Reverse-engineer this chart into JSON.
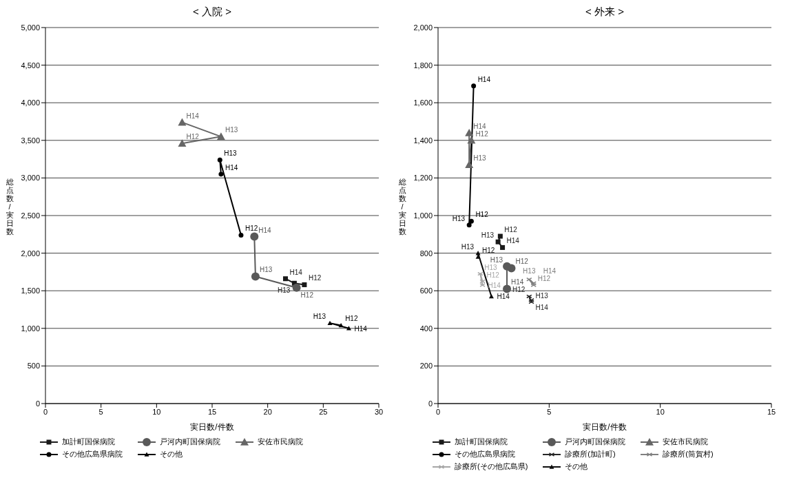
{
  "chart_data": [
    {
      "type": "line",
      "title": "< 入院 >",
      "xlabel": "実日数/件数",
      "ylabel": "総点数/実日数",
      "xlim": [
        0,
        30
      ],
      "xticks": [
        0,
        5,
        10,
        15,
        20,
        25,
        30
      ],
      "ylim": [
        0,
        5000
      ],
      "yticks": [
        0,
        500,
        {
          "value": 1000,
          "label": "1,000"
        },
        {
          "value": 1500,
          "label": "1,500"
        },
        {
          "value": 2000,
          "label": "2,000"
        },
        {
          "value": 2500,
          "label": "2,500"
        },
        {
          "value": 3000,
          "label": "3,000"
        },
        {
          "value": 3500,
          "label": "3,500"
        },
        {
          "value": 4000,
          "label": "4,000"
        },
        {
          "value": 4500,
          "label": "4,500"
        },
        {
          "value": 5000,
          "label": "5,000"
        }
      ],
      "grid": "y",
      "legend": "bottom",
      "series": [
        {
          "name": "加計町国保病院",
          "color": "#1a1a1a",
          "marker": "square",
          "x": [
            23.3,
            22.4,
            21.6
          ],
          "values": [
            1580,
            1600,
            1660
          ],
          "value_labels": [
            "H12",
            "H13",
            "H14"
          ]
        },
        {
          "name": "戸河内町国保病院",
          "color": "#595959",
          "marker": "circle",
          "x": [
            22.6,
            18.9,
            18.8
          ],
          "values": [
            1540,
            1690,
            2220
          ],
          "value_labels": [
            "H12",
            "H13",
            "H14"
          ]
        },
        {
          "name": "安佐市民病院",
          "color": "#666666",
          "marker": "triangle",
          "x": [
            12.3,
            15.8,
            12.3
          ],
          "values": [
            3460,
            3550,
            3740
          ],
          "value_labels": [
            "H12",
            "H13",
            "H14"
          ]
        },
        {
          "name": "その他広島県病院",
          "color": "#000000",
          "marker": "circle",
          "x": [
            17.6,
            15.7,
            15.8
          ],
          "values": [
            2240,
            3240,
            3050
          ],
          "value_labels": [
            "H12",
            "H13",
            "H14"
          ]
        },
        {
          "name": "その他",
          "color": "#000000",
          "marker": "triangle",
          "x": [
            26.6,
            25.6,
            27.3
          ],
          "values": [
            1040,
            1070,
            1000
          ],
          "value_labels": [
            "H12",
            "H13",
            "H14"
          ]
        }
      ]
    },
    {
      "type": "line",
      "title": "< 外来 >",
      "xlabel": "実日数/件数",
      "ylabel": "総点数/実日数",
      "xlim": [
        0,
        15
      ],
      "xticks": [
        0,
        5,
        10,
        15
      ],
      "ylim": [
        0,
        2000
      ],
      "yticks": [
        0,
        200,
        400,
        600,
        800,
        {
          "value": 1000,
          "label": "1,000"
        },
        {
          "value": 1200,
          "label": "1,200"
        },
        {
          "value": 1400,
          "label": "1,400"
        },
        {
          "value": 1600,
          "label": "1,600"
        },
        {
          "value": 1800,
          "label": "1,800"
        },
        {
          "value": 2000,
          "label": "2,000"
        }
      ],
      "grid": "y",
      "legend": "bottom",
      "series": [
        {
          "name": "加計町国保病院",
          "color": "#1a1a1a",
          "marker": "square",
          "x": [
            2.8,
            2.7,
            2.9
          ],
          "values": [
            890,
            860,
            830
          ],
          "value_labels": [
            "H12",
            "H13",
            "H14"
          ]
        },
        {
          "name": "戸河内町国保病院",
          "color": "#595959",
          "marker": "circle",
          "x": [
            3.3,
            3.1,
            3.1
          ],
          "values": [
            720,
            730,
            610
          ],
          "value_labels": [
            "H12",
            "H13",
            "H14"
          ]
        },
        {
          "name": "安佐市民病院",
          "color": "#666666",
          "marker": "triangle",
          "x": [
            1.5,
            1.4,
            1.4
          ],
          "values": [
            1400,
            1270,
            1440
          ],
          "value_labels": [
            "H12",
            "H13",
            "H14"
          ]
        },
        {
          "name": "その他広島県病院",
          "color": "#000000",
          "marker": "circle",
          "x": [
            1.5,
            1.4,
            1.6
          ],
          "values": [
            970,
            950,
            1690
          ],
          "value_labels": [
            "H12",
            "H13",
            "H14"
          ]
        },
        {
          "name": "診療所(加計町)",
          "color": "#262626",
          "marker": "cross",
          "x": [
            4.1,
            4.2,
            4.2
          ],
          "values": [
            570,
            540,
            550
          ],
          "value_labels": [
            "H12",
            "H13",
            "H14"
          ]
        },
        {
          "name": "診療所(筒賀村)",
          "color": "#808080",
          "marker": "cross",
          "x": [
            4.3,
            4.1,
            4.3
          ],
          "values": [
            630,
            660,
            640
          ],
          "value_labels": [
            "H12",
            "H13",
            "H14"
          ]
        },
        {
          "name": "診療所(その他広島県)",
          "color": "#a6a6a6",
          "marker": "cross",
          "x": [
            2.0,
            1.9,
            2.0
          ],
          "values": [
            650,
            690,
            630
          ],
          "value_labels": [
            "H12",
            "H13",
            "H14"
          ]
        },
        {
          "name": "その他",
          "color": "#0d0d0d",
          "marker": "triangle",
          "x": [
            1.8,
            1.8,
            2.4
          ],
          "values": [
            780,
            800,
            570
          ],
          "value_labels": [
            "H12",
            "H13",
            "H14"
          ]
        }
      ]
    }
  ]
}
